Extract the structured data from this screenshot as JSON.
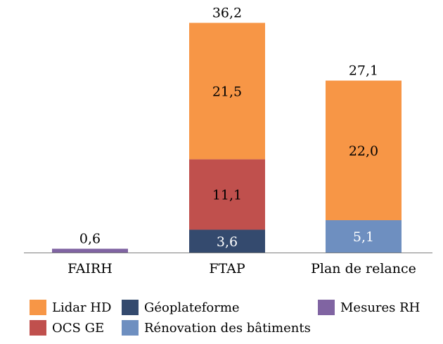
{
  "chart_data": {
    "type": "bar",
    "stacked": true,
    "categories": [
      "FAIRH",
      "FTAP",
      "Plan de relance"
    ],
    "series": [
      {
        "name": "Mesures RH",
        "color": "#8064a2",
        "values": [
          0.6,
          0,
          0
        ],
        "labels": [
          "",
          "",
          ""
        ]
      },
      {
        "name": "Géoplateforme",
        "color": "#344a6e",
        "values": [
          0,
          3.6,
          0
        ],
        "labels": [
          "",
          "3,6",
          ""
        ]
      },
      {
        "name": "Rénovation des bâtiments",
        "color": "#6e8fc0",
        "values": [
          0,
          0,
          5.1
        ],
        "labels": [
          "",
          "",
          "5,1"
        ]
      },
      {
        "name": "OCS GE",
        "color": "#c0504d",
        "values": [
          0,
          11.1,
          0
        ],
        "labels": [
          "",
          "11,1",
          ""
        ]
      },
      {
        "name": "Lidar HD",
        "color": "#f79646",
        "values": [
          0,
          21.5,
          22.0
        ],
        "labels": [
          "",
          "21,5",
          "22,0"
        ]
      }
    ],
    "totals": [
      0.6,
      36.2,
      27.1
    ],
    "total_labels": [
      "0,6",
      "36,2",
      "27,1"
    ],
    "ylim": [
      0,
      36.2
    ],
    "grid": false,
    "legend_position": "bottom"
  }
}
